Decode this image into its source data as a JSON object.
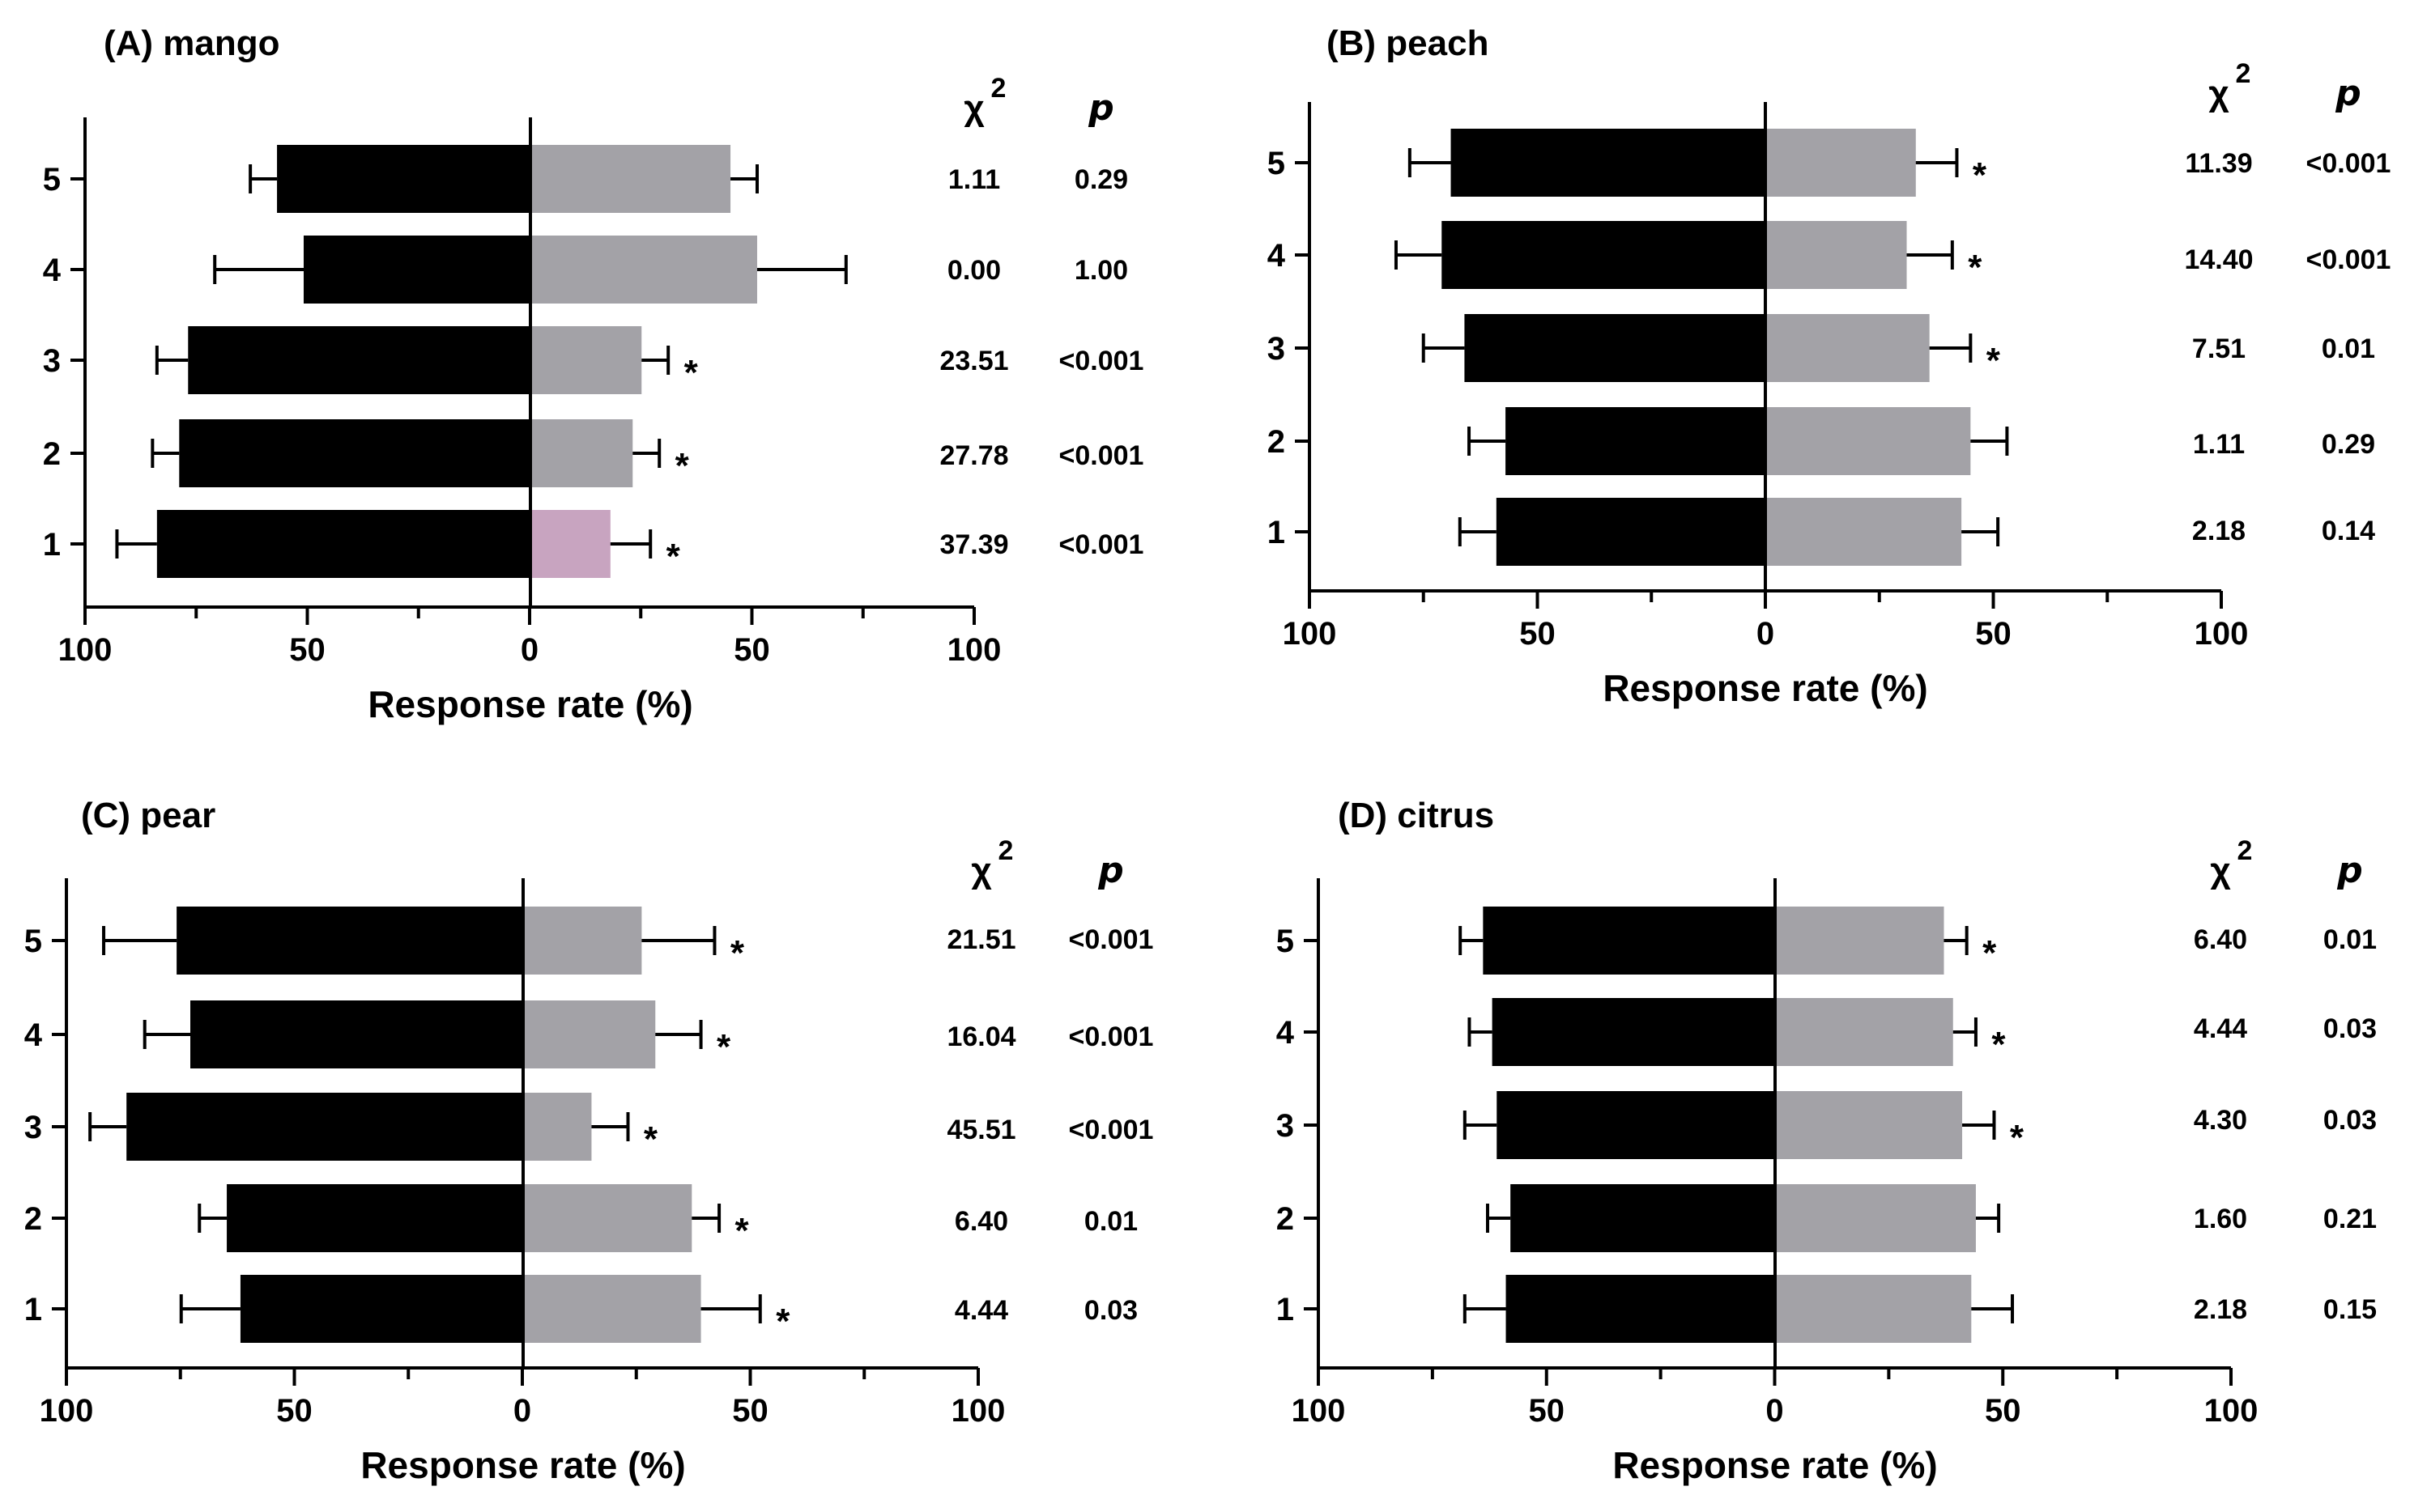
{
  "colors": {
    "left_bar": "#000000",
    "right_bar": "#a3a2a7",
    "highlight_bar": "#c8a4c0",
    "axis": "#000000"
  },
  "stat_headers": {
    "chi": "χ",
    "chi_sup": "2",
    "p": "p"
  },
  "chart_data": [
    {
      "type": "bar",
      "orientation": "horizontal-diverging",
      "title": "(A) mango",
      "xlabel": "Response rate (%)",
      "xlim": [
        100,
        0,
        100
      ],
      "x_tick_labels": [
        "100",
        "50",
        "0",
        "50",
        "100"
      ],
      "categories": [
        "5",
        "4",
        "3",
        "2",
        "1"
      ],
      "series": [
        {
          "name": "left",
          "values": [
            57,
            51,
            77,
            79,
            84
          ],
          "errors": [
            6,
            20,
            7,
            6,
            9
          ]
        },
        {
          "name": "right",
          "values": [
            45,
            51,
            25,
            23,
            18
          ],
          "errors": [
            6,
            20,
            6,
            6,
            9
          ]
        }
      ],
      "significance": [
        "",
        "",
        "*",
        "*",
        "*"
      ],
      "chi2": [
        "1.11",
        "0.00",
        "23.51",
        "27.78",
        "37.39"
      ],
      "p": [
        "0.29",
        "1.00",
        "<0.001",
        "<0.001",
        "<0.001"
      ],
      "highlight_right_index": 4
    },
    {
      "type": "bar",
      "orientation": "horizontal-diverging",
      "title": "(B) peach",
      "xlabel": "Response rate (%)",
      "xlim": [
        100,
        0,
        100
      ],
      "x_tick_labels": [
        "100",
        "50",
        "0",
        "50",
        "100"
      ],
      "categories": [
        "5",
        "4",
        "3",
        "2",
        "1"
      ],
      "series": [
        {
          "name": "left",
          "values": [
            69,
            71,
            66,
            57,
            59
          ],
          "errors": [
            9,
            10,
            9,
            8,
            8
          ]
        },
        {
          "name": "right",
          "values": [
            33,
            31,
            36,
            45,
            43
          ],
          "errors": [
            9,
            10,
            9,
            8,
            8
          ]
        }
      ],
      "significance": [
        "*",
        "*",
        "*",
        "",
        ""
      ],
      "chi2": [
        "11.39",
        "14.40",
        "7.51",
        "1.11",
        "2.18"
      ],
      "p": [
        "<0.001",
        "<0.001",
        "0.01",
        "0.29",
        "0.14"
      ]
    },
    {
      "type": "bar",
      "orientation": "horizontal-diverging",
      "title": "(C) pear",
      "xlabel": "Response rate (%)",
      "xlim": [
        100,
        0,
        100
      ],
      "x_tick_labels": [
        "100",
        "50",
        "0",
        "50",
        "100"
      ],
      "categories": [
        "5",
        "4",
        "3",
        "2",
        "1"
      ],
      "series": [
        {
          "name": "left",
          "values": [
            76,
            73,
            87,
            65,
            62
          ],
          "errors": [
            16,
            10,
            8,
            6,
            13
          ]
        },
        {
          "name": "right",
          "values": [
            26,
            29,
            15,
            37,
            39
          ],
          "errors": [
            16,
            10,
            8,
            6,
            13
          ]
        }
      ],
      "significance": [
        "*",
        "*",
        "*",
        "*",
        "*"
      ],
      "chi2": [
        "21.51",
        "16.04",
        "45.51",
        "6.40",
        "4.44"
      ],
      "p": [
        "<0.001",
        "<0.001",
        "<0.001",
        "0.01",
        "0.03"
      ]
    },
    {
      "type": "bar",
      "orientation": "horizontal-diverging",
      "title": "(D) citrus",
      "xlabel": "Response rate (%)",
      "xlim": [
        100,
        0,
        100
      ],
      "x_tick_labels": [
        "100",
        "50",
        "0",
        "50",
        "100"
      ],
      "categories": [
        "5",
        "4",
        "3",
        "2",
        "1"
      ],
      "series": [
        {
          "name": "left",
          "values": [
            64,
            62,
            61,
            58,
            59
          ],
          "errors": [
            5,
            5,
            7,
            5,
            9
          ]
        },
        {
          "name": "right",
          "values": [
            37,
            39,
            41,
            44,
            43
          ],
          "errors": [
            5,
            5,
            7,
            5,
            9
          ]
        }
      ],
      "significance": [
        "*",
        "*",
        "*",
        "",
        ""
      ],
      "chi2": [
        "6.40",
        "4.44",
        "4.30",
        "1.60",
        "2.18"
      ],
      "p": [
        "0.01",
        "0.03",
        "0.03",
        "0.21",
        "0.15"
      ]
    }
  ]
}
